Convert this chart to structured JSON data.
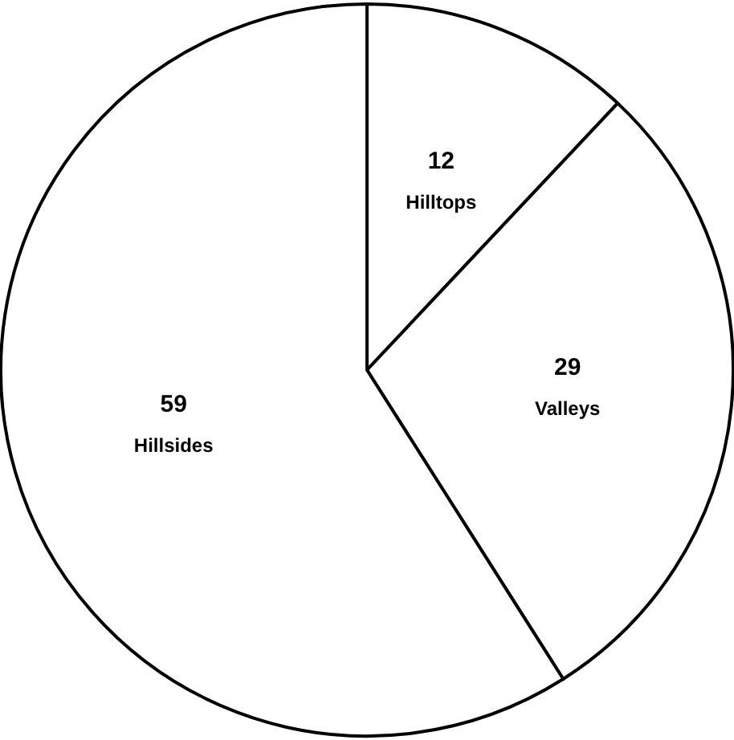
{
  "chart_data": {
    "type": "pie",
    "categories": [
      "Hilltops",
      "Valleys",
      "Hillsides"
    ],
    "values": [
      12,
      29,
      59
    ],
    "colors": [
      "#ffffff",
      "#ffffff",
      "#ffffff"
    ],
    "data_labels": true,
    "legend": false
  }
}
